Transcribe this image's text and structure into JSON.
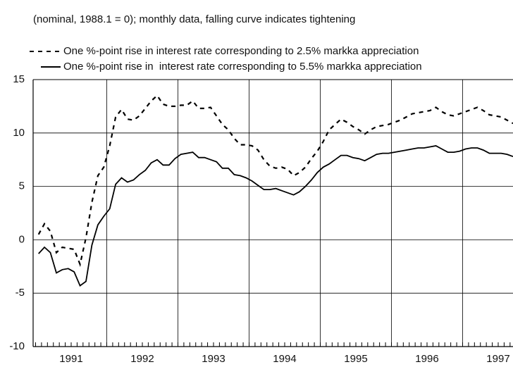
{
  "chart_data": {
    "type": "line",
    "subtitle": "(nominal, 1988.1 = 0); monthly data, falling curve indicates tightening",
    "categories": [
      null,
      null,
      null,
      null,
      null,
      null,
      "1991",
      null,
      null,
      null,
      null,
      null,
      null,
      null,
      null,
      null,
      null,
      null,
      "1992",
      null,
      null,
      null,
      null,
      null,
      null,
      null,
      null,
      null,
      null,
      null,
      "1993",
      null,
      null,
      null,
      null,
      null,
      null,
      null,
      null,
      null,
      null,
      null,
      "1994",
      null,
      null,
      null,
      null,
      null,
      null,
      null,
      null,
      null,
      null,
      null,
      "1995",
      null,
      null,
      null,
      null,
      null,
      null,
      null,
      null,
      null,
      null,
      null,
      "1996",
      null,
      null,
      null,
      null,
      null,
      null,
      null,
      null,
      null,
      null,
      null,
      "1997",
      null,
      null
    ],
    "series": [
      {
        "name": "One %-point rise in interest rate corresponding to 2.5% markka appreciation",
        "color": "#000000",
        "line_style": "dashed",
        "values": [
          0.5,
          1.5,
          0.8,
          -1.2,
          -0.7,
          -0.8,
          -0.9,
          -2.3,
          0.2,
          3.5,
          6.0,
          6.8,
          8.8,
          11.5,
          12.2,
          11.3,
          11.2,
          11.6,
          12.3,
          13.0,
          13.5,
          12.7,
          12.5,
          12.5,
          12.6,
          12.6,
          13.0,
          12.3,
          12.3,
          12.4,
          11.6,
          10.8,
          10.3,
          9.5,
          8.9,
          8.9,
          8.8,
          8.4,
          7.5,
          6.9,
          6.7,
          6.8,
          6.6,
          6.0,
          6.3,
          6.8,
          7.6,
          8.3,
          9.2,
          10.3,
          10.8,
          11.3,
          11.0,
          10.6,
          10.3,
          9.9,
          10.3,
          10.6,
          10.7,
          10.8,
          11.0,
          11.2,
          11.5,
          11.8,
          11.9,
          12.0,
          12.1,
          12.4,
          12.0,
          11.7,
          11.6,
          11.8,
          12.0,
          12.2,
          12.4,
          12.1,
          11.7,
          11.6,
          11.5,
          11.2,
          10.9
        ]
      },
      {
        "name": "One %-point rise in  interest rate corresponding to 5.5% markka appreciation",
        "color": "#000000",
        "line_style": "solid",
        "values": [
          -1.3,
          -0.7,
          -1.2,
          -3.1,
          -2.8,
          -2.7,
          -3.0,
          -4.3,
          -3.9,
          -0.5,
          1.4,
          2.2,
          2.9,
          5.2,
          5.8,
          5.4,
          5.6,
          6.1,
          6.5,
          7.2,
          7.5,
          7.0,
          7.0,
          7.6,
          8.0,
          8.1,
          8.2,
          7.7,
          7.7,
          7.5,
          7.3,
          6.7,
          6.7,
          6.1,
          6.0,
          5.8,
          5.5,
          5.1,
          4.7,
          4.7,
          4.8,
          4.6,
          4.4,
          4.2,
          4.5,
          5.0,
          5.6,
          6.3,
          6.8,
          7.1,
          7.5,
          7.9,
          7.9,
          7.7,
          7.6,
          7.4,
          7.7,
          8.0,
          8.1,
          8.1,
          8.2,
          8.3,
          8.4,
          8.5,
          8.6,
          8.6,
          8.7,
          8.8,
          8.5,
          8.2,
          8.2,
          8.3,
          8.5,
          8.6,
          8.6,
          8.4,
          8.1,
          8.1,
          8.1,
          8.0,
          7.8
        ]
      }
    ],
    "ylim": [
      -10,
      15
    ],
    "yticks": [
      -10,
      -5,
      0,
      5,
      10,
      15
    ],
    "grid": true
  }
}
